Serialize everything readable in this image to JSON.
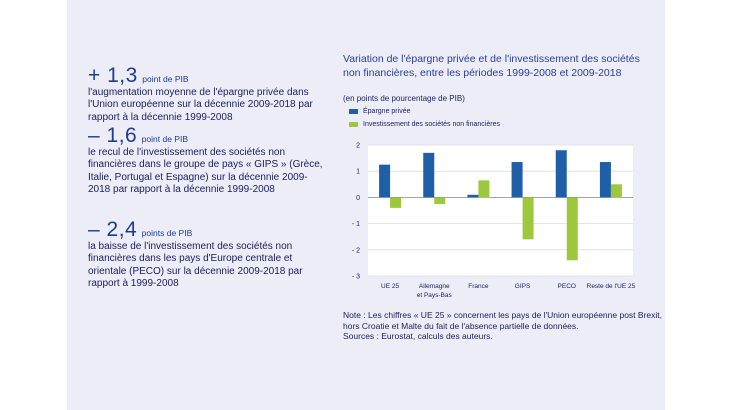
{
  "stats": [
    {
      "value": "+ 1,3",
      "unit": "point de PIB",
      "desc": "l'augmentation moyenne de l'épargne privée dans l'Union européenne sur la décennie 2009-2018 par rapport à la décennie 1999-2008"
    },
    {
      "value": "– 1,6",
      "unit": "point de PIB",
      "desc": "le recul de l'investissement des sociétés non financières dans le groupe de pays « GIPS » (Grèce, Italie, Portugal et Espagne) sur la décennie 2009-2018 par rapport à la décennie 1999-2008"
    },
    {
      "value": "– 2,4",
      "unit": "points de PIB",
      "desc": "la baisse de l'investissement des sociétés non financières dans les pays d'Europe centrale et orientale (PECO) sur la décennie 2009-2018 par rapport à 1999-2008"
    }
  ],
  "chart_data": {
    "type": "bar",
    "title": "Variation de l'épargne privée et de l'investissement des sociétés non financières, entre les périodes 1999-2008 et 2009-2018",
    "subtitle": "(en points de pourcentage de PIB)",
    "categories": [
      "UE 25",
      "Allemagne et Pays-Bas",
      "France",
      "GIPS",
      "PECO",
      "Reste de l'UE 25"
    ],
    "category_lines": [
      [
        "UE 25"
      ],
      [
        "Allemagne",
        "et Pays-Bas"
      ],
      [
        "France"
      ],
      [
        "GIPS"
      ],
      [
        "PECO"
      ],
      [
        "Reste de l'UE 25"
      ]
    ],
    "series": [
      {
        "name": "Épargne privée",
        "color": "#1f5fa8",
        "values": [
          1.25,
          1.7,
          0.1,
          1.35,
          1.8,
          1.35
        ]
      },
      {
        "name": "Investissement des sociétés non financières",
        "color": "#9dc83b",
        "values": [
          -0.4,
          -0.25,
          0.65,
          -1.6,
          -2.4,
          0.5
        ]
      }
    ],
    "ylim": [
      -3,
      2
    ],
    "yticks": [
      2,
      1,
      0,
      -1,
      -2,
      -3
    ],
    "ytick_labels": [
      "2",
      "1",
      "0",
      "- 1",
      "- 2",
      "- 3"
    ],
    "grid": true
  },
  "note": "Note : Les chiffres « UE 25 » concernent les pays de l'Union européenne post Brexit, hors Croatie et Malte du fait de l'absence partielle de données.",
  "sources": "Sources : Eurostat, calculs des auteurs."
}
